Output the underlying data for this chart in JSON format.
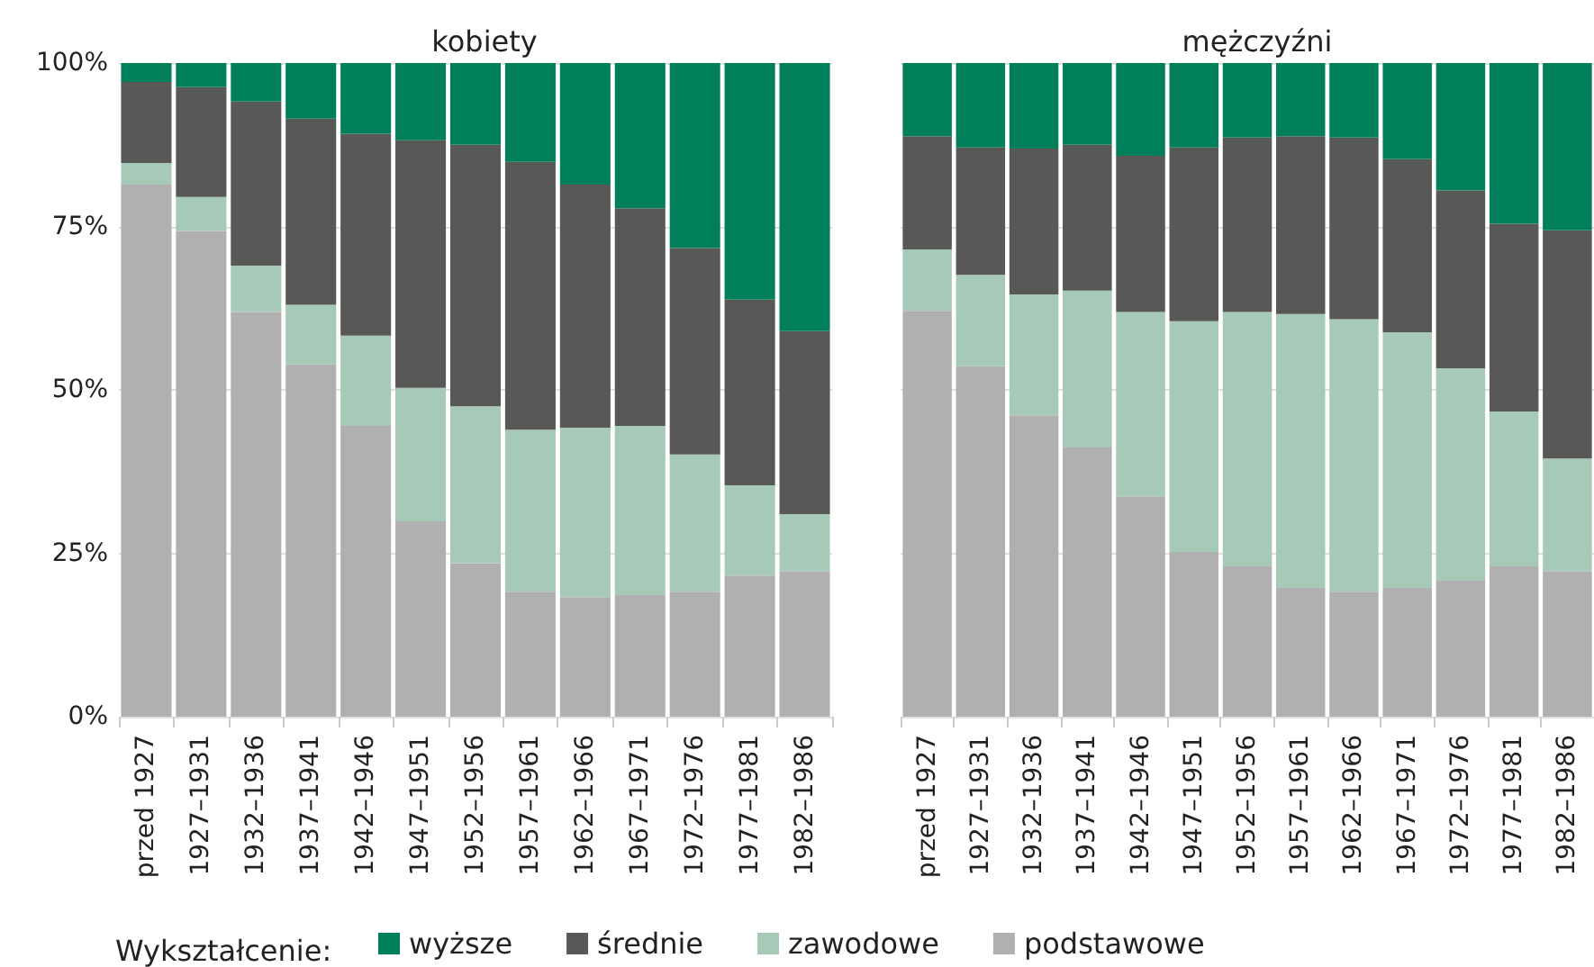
{
  "chart_data": [
    {
      "type": "bar",
      "title": "kobiety",
      "stacked": true,
      "legend": "bottom",
      "legend_title": "Wykształcenie:",
      "grid": "y",
      "categories": [
        "przed 1927",
        "1927–1931",
        "1932–1936",
        "1937–1941",
        "1942–1946",
        "1947–1951",
        "1952–1956",
        "1957–1961",
        "1962–1966",
        "1967–1971",
        "1972–1976",
        "1977–1981",
        "1982–1986"
      ],
      "ylim": [
        0,
        100
      ],
      "yticks": [
        {
          "value": 0,
          "label": "0%"
        },
        {
          "value": 25,
          "label": "25%"
        },
        {
          "value": 50,
          "label": "50%"
        },
        {
          "value": 75,
          "label": "75%"
        },
        {
          "value": 100,
          "label": "100%"
        }
      ],
      "series": [
        {
          "name": "podstawowe",
          "color": "#b0b0b0",
          "values": [
            81.4,
            74.3,
            61.9,
            53.9,
            44.5,
            29.9,
            23.5,
            19.1,
            18.3,
            18.6,
            19.1,
            21.6,
            22.2
          ]
        },
        {
          "name": "zawodowe",
          "color": "#a7c9b7",
          "values": [
            3.3,
            5.2,
            7.1,
            9.1,
            13.8,
            20.4,
            24.0,
            24.8,
            25.9,
            25.9,
            21.0,
            13.8,
            8.8
          ]
        },
        {
          "name": "średnie",
          "color": "#585856",
          "values": [
            12.4,
            16.8,
            25.1,
            28.5,
            30.9,
            37.9,
            40.0,
            41.0,
            37.2,
            33.3,
            31.6,
            28.4,
            28.0
          ]
        },
        {
          "name": "wyższe",
          "color": "#007f5a",
          "values": [
            2.9,
            3.7,
            5.9,
            8.6,
            10.8,
            11.8,
            12.5,
            15.1,
            18.6,
            22.2,
            28.3,
            36.2,
            41.0
          ]
        }
      ]
    },
    {
      "type": "bar",
      "title": "mężczyźni",
      "stacked": true,
      "legend": false,
      "grid": "y",
      "tick_labels": "x",
      "categories": [
        "przed 1927",
        "1927–1931",
        "1932–1936",
        "1937–1941",
        "1942–1946",
        "1947–1951",
        "1952–1956",
        "1957–1961",
        "1962–1966",
        "1967–1971",
        "1972–1976",
        "1977–1981",
        "1982–1986"
      ],
      "ylim": [
        0,
        100
      ],
      "yticks": [
        {
          "value": 0,
          "label": null
        },
        {
          "value": 25,
          "label": null
        },
        {
          "value": 50,
          "label": null
        },
        {
          "value": 75,
          "label": null
        },
        {
          "value": 100,
          "label": null
        }
      ],
      "series": [
        {
          "color": "#b0b0b0",
          "values": [
            62.1,
            53.6,
            46.1,
            41.2,
            33.7,
            25.2,
            23.0,
            19.7,
            19.1,
            19.7,
            20.8,
            23.0,
            22.2
          ]
        },
        {
          "color": "#a7c9b7",
          "values": [
            9.4,
            14.0,
            18.5,
            24.0,
            28.2,
            35.3,
            38.9,
            41.9,
            41.7,
            39.1,
            32.5,
            23.7,
            17.3
          ]
        },
        {
          "color": "#585856",
          "values": [
            17.3,
            19.5,
            22.3,
            22.3,
            23.9,
            26.6,
            26.7,
            27.2,
            27.8,
            26.5,
            27.2,
            28.7,
            34.9
          ]
        },
        {
          "color": "#007f5a",
          "values": [
            11.2,
            12.9,
            13.1,
            12.5,
            14.2,
            12.9,
            11.4,
            11.2,
            11.4,
            14.7,
            19.5,
            24.6,
            25.6
          ]
        }
      ]
    }
  ]
}
